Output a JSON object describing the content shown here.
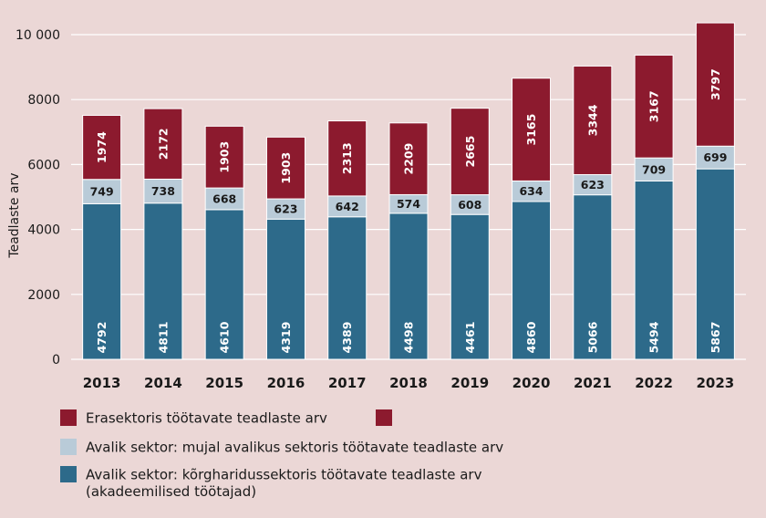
{
  "chart_data": {
    "type": "bar",
    "stacked": true,
    "categories": [
      "2013",
      "2014",
      "2015",
      "2016",
      "2017",
      "2018",
      "2019",
      "2020",
      "2021",
      "2022",
      "2023"
    ],
    "ylabel": "Teadlaste arv",
    "xlabel": "",
    "ylim": [
      0,
      10000
    ],
    "yticks": [
      0,
      2000,
      4000,
      6000,
      8000,
      10000
    ],
    "ytick_labels": [
      "0",
      "2000",
      "4000",
      "6000",
      "8000",
      "10 000"
    ],
    "grid": "horizontal",
    "legend_position": "bottom",
    "series": [
      {
        "name": "Avalik sektor: kõrgharidussektoris töötavate teadlaste arv",
        "name_line2": "(akadeemilised töötajad)",
        "color": "#2d6a8a",
        "label_color": "#ffffff",
        "label_orientation": "vertical",
        "values": [
          4792,
          4811,
          4610,
          4319,
          4389,
          4498,
          4461,
          4860,
          5066,
          5494,
          5867
        ]
      },
      {
        "name": "Avalik sektor: mujal avalikus sektoris töötavate teadlaste arv",
        "color": "#b9cbd8",
        "label_color": "#1a1a1a",
        "label_orientation": "horizontal",
        "values": [
          749,
          738,
          668,
          623,
          642,
          574,
          608,
          634,
          623,
          709,
          699
        ]
      },
      {
        "name": "Erasektoris töötavate teadlaste arv",
        "color": "#8c1a2e",
        "label_color": "#ffffff",
        "label_orientation": "vertical",
        "values": [
          1974,
          2172,
          1903,
          1903,
          2313,
          2209,
          2665,
          3165,
          3344,
          3167,
          3797
        ]
      }
    ],
    "legend_extra_swatch_color": "#8c1a2e"
  }
}
